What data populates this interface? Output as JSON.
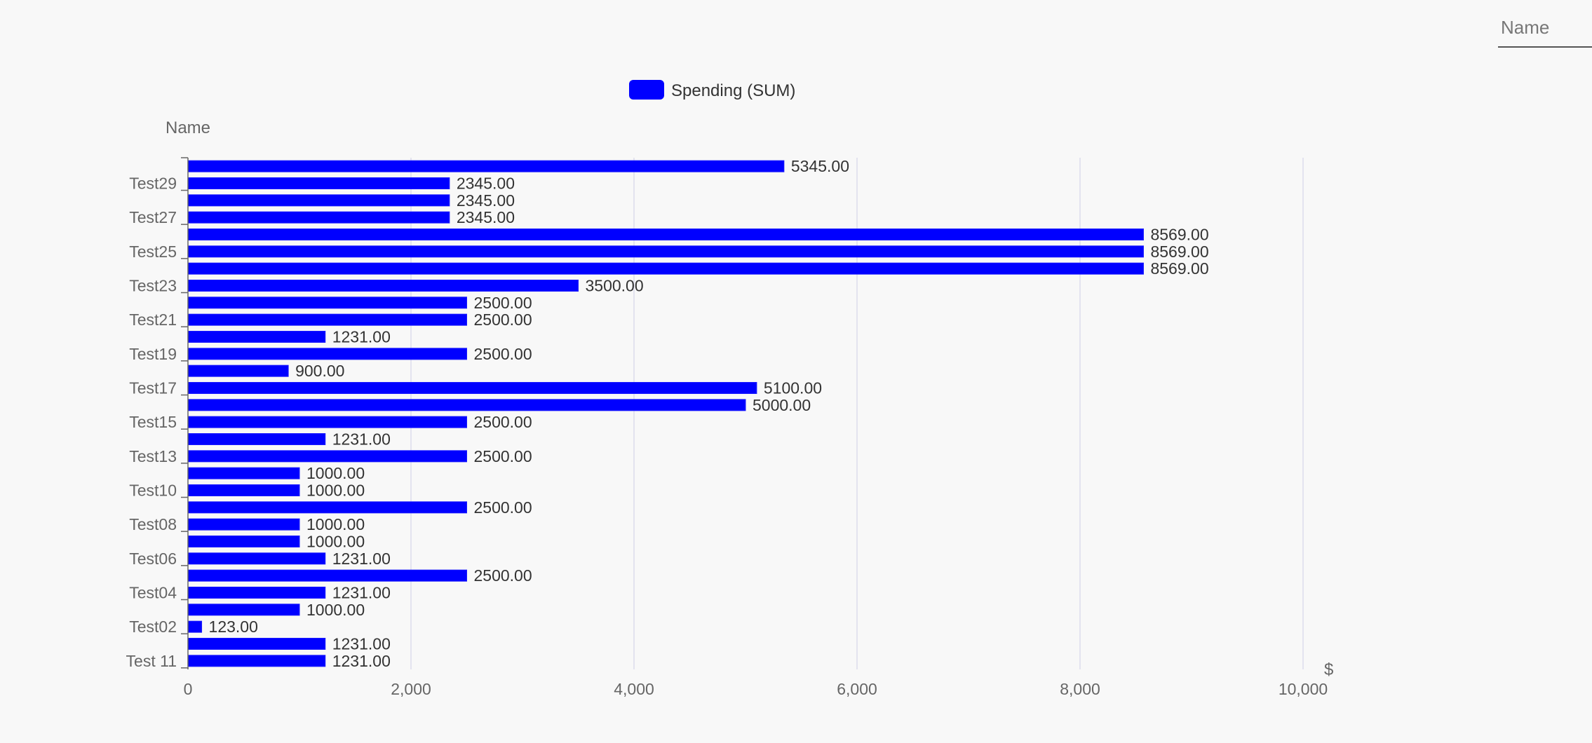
{
  "filter": {
    "placeholder": "Name",
    "value": ""
  },
  "chart_data": {
    "type": "bar",
    "orientation": "horizontal",
    "legend": {
      "label": "Spending (SUM)",
      "color": "#0000ff",
      "position": "top"
    },
    "y_axis_title": "Name",
    "x_axis_title": "$",
    "xlim": [
      0,
      10000
    ],
    "x_ticks": [
      0,
      2000,
      4000,
      6000,
      8000,
      10000
    ],
    "x_tick_labels": [
      "0",
      "2,000",
      "4,000",
      "6,000",
      "8,000",
      "10,000"
    ],
    "grid": true,
    "bar_color": "#0000ff",
    "values": [
      5345,
      2345,
      2345,
      2345,
      8569,
      8569,
      8569,
      3500,
      2500,
      2500,
      1231,
      2500,
      900,
      5100,
      5000,
      2500,
      1231,
      2500,
      1000,
      1000,
      2500,
      1000,
      1000,
      1231,
      2500,
      1231,
      1000,
      123,
      1231,
      1231
    ],
    "value_labels": [
      "5345.00",
      "2345.00",
      "2345.00",
      "2345.00",
      "8569.00",
      "8569.00",
      "8569.00",
      "3500.00",
      "2500.00",
      "2500.00",
      "1231.00",
      "2500.00",
      "900.00",
      "5100.00",
      "5000.00",
      "2500.00",
      "1231.00",
      "2500.00",
      "1000.00",
      "1000.00",
      "2500.00",
      "1000.00",
      "1000.00",
      "1231.00",
      "2500.00",
      "1231.00",
      "1000.00",
      "123.00",
      "1231.00",
      "1231.00"
    ],
    "category_labels": [
      "",
      "Test29",
      "",
      "Test27",
      "",
      "Test25",
      "",
      "Test23",
      "",
      "Test21",
      "",
      "Test19",
      "",
      "Test17",
      "",
      "Test15",
      "",
      "Test13",
      "",
      "Test10",
      "",
      "Test08",
      "",
      "Test06",
      "",
      "Test04",
      "",
      "Test02",
      "",
      "Test 11"
    ]
  }
}
